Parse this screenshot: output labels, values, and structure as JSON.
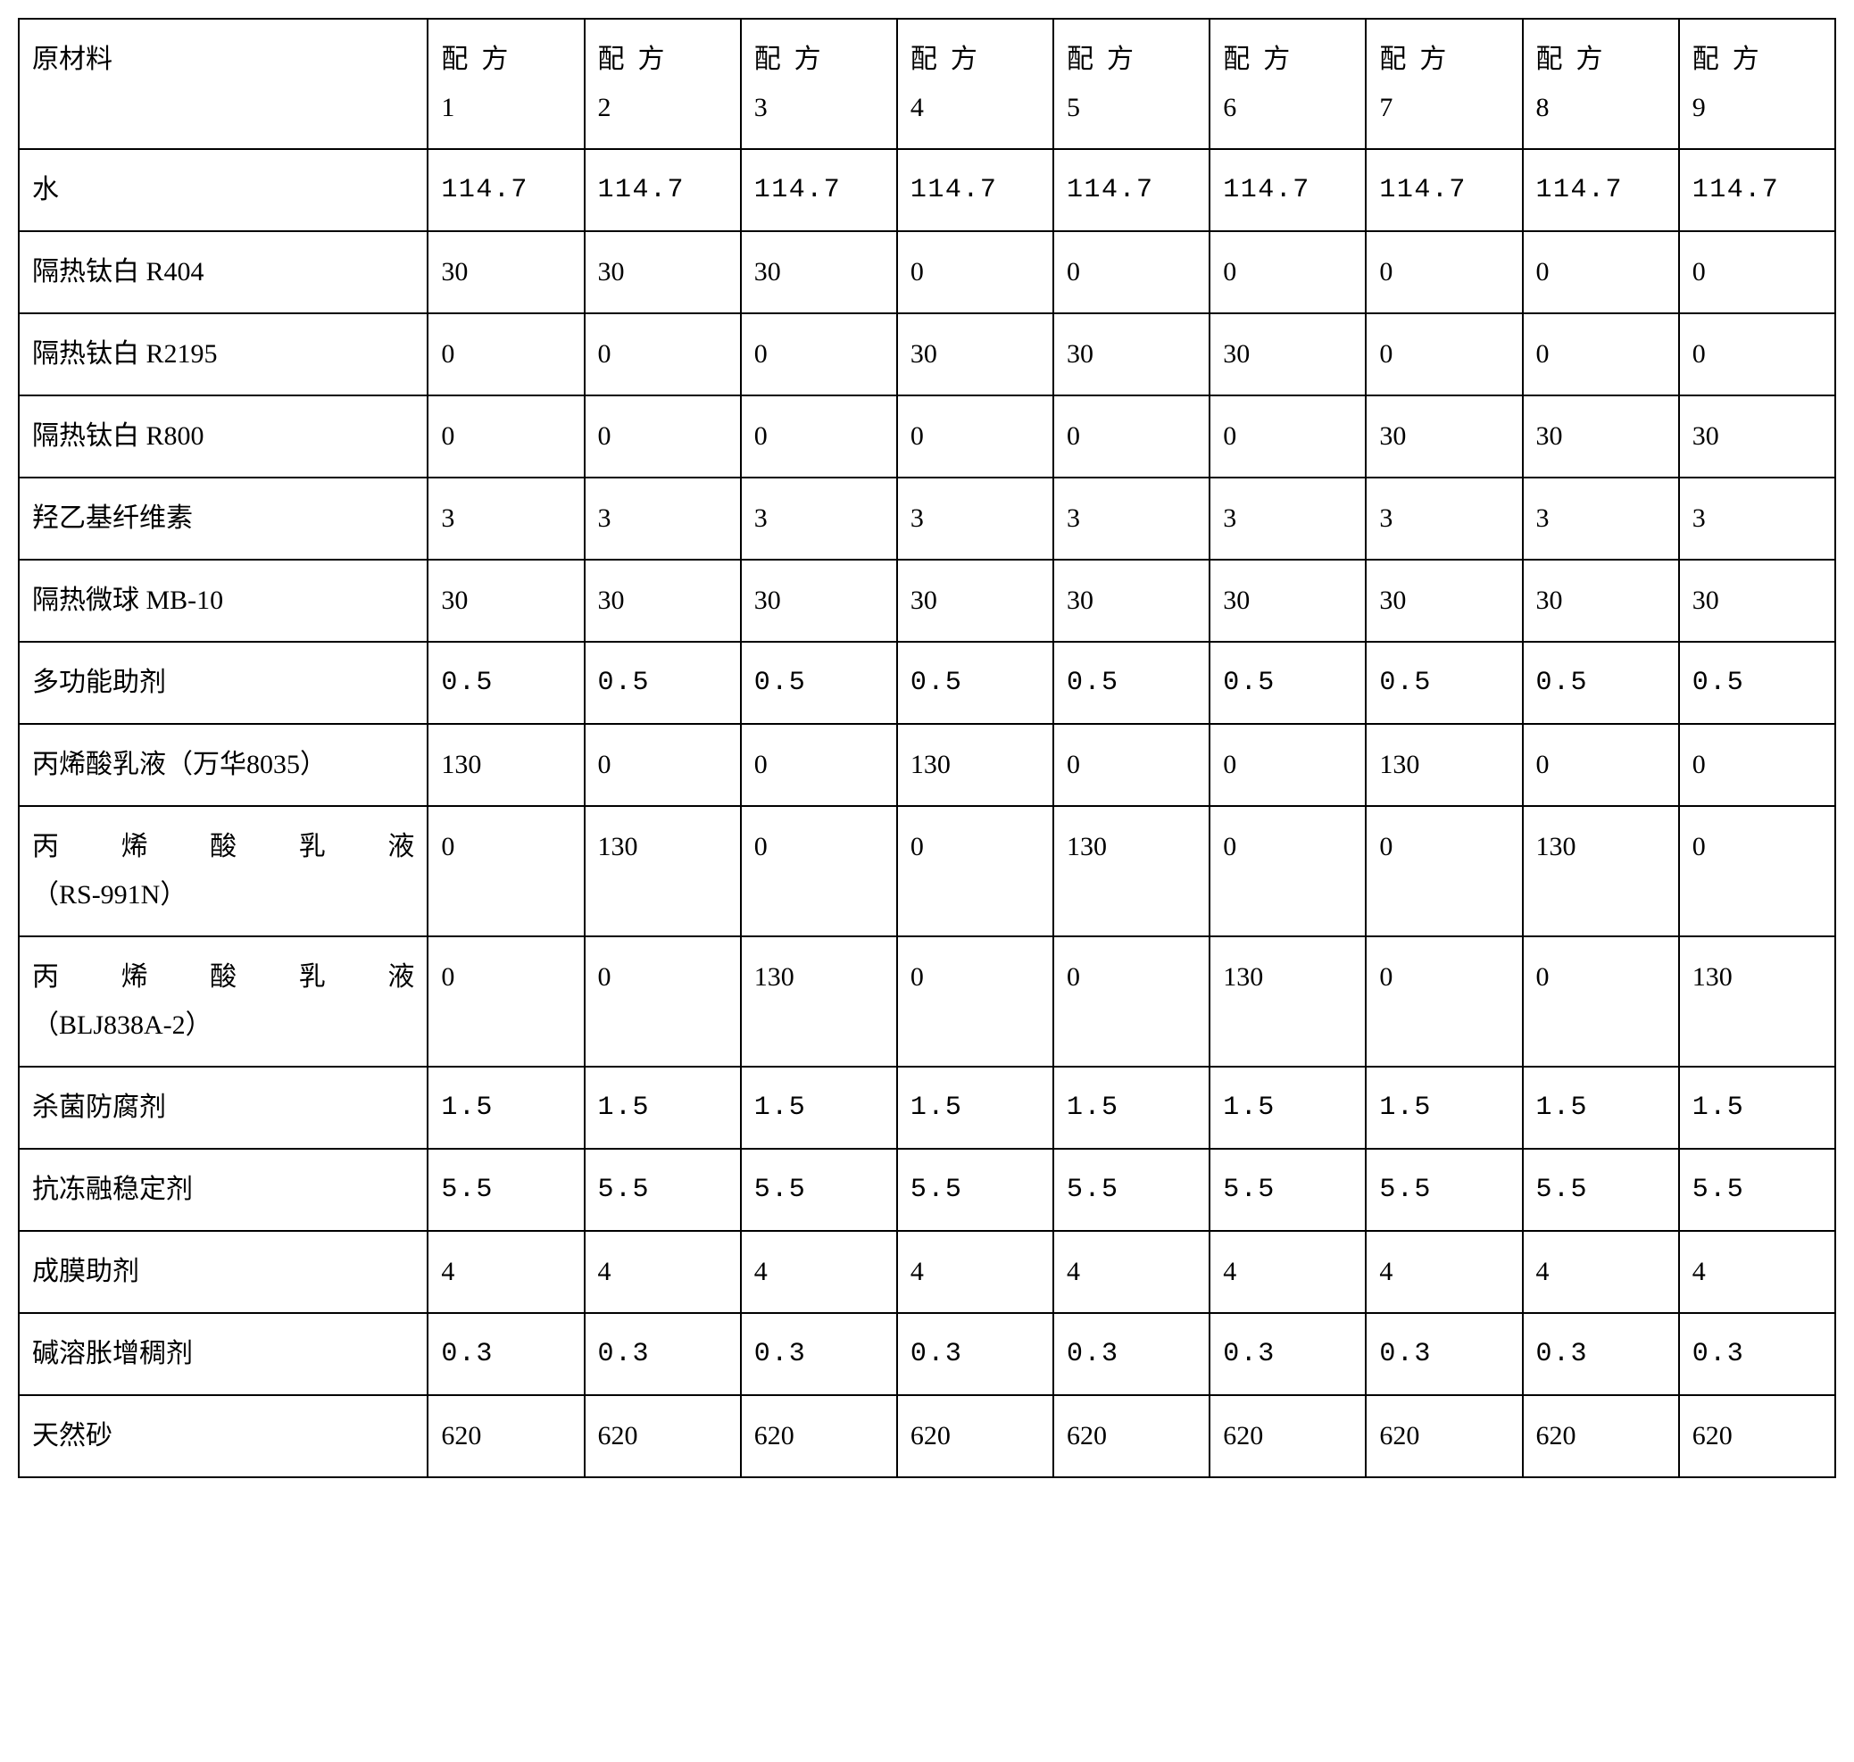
{
  "table": {
    "header": {
      "material_label": "原材料",
      "formula_prefix": "配方",
      "formula_numbers": [
        "1",
        "2",
        "3",
        "4",
        "5",
        "6",
        "7",
        "8",
        "9"
      ]
    },
    "rows": [
      {
        "material": "水",
        "material_class": "",
        "values": [
          "114.7",
          "114.7",
          "114.7",
          "114.7",
          "114.7",
          "114.7",
          "114.7",
          "114.7",
          "114.7"
        ],
        "value_class": "monospace"
      },
      {
        "material": "隔热钛白 R404",
        "material_class": "",
        "values": [
          "30",
          "30",
          "30",
          "0",
          "0",
          "0",
          "0",
          "0",
          "0"
        ],
        "value_class": ""
      },
      {
        "material": "隔热钛白 R2195",
        "material_class": "",
        "values": [
          "0",
          "0",
          "0",
          "30",
          "30",
          "30",
          "0",
          "0",
          "0"
        ],
        "value_class": ""
      },
      {
        "material": "隔热钛白 R800",
        "material_class": "",
        "values": [
          "0",
          "0",
          "0",
          "0",
          "0",
          "0",
          "30",
          "30",
          "30"
        ],
        "value_class": ""
      },
      {
        "material": "羟乙基纤维素",
        "material_class": "",
        "values": [
          "3",
          "3",
          "3",
          "3",
          "3",
          "3",
          "3",
          "3",
          "3"
        ],
        "value_class": ""
      },
      {
        "material": "隔热微球 MB-10",
        "material_class": "",
        "values": [
          "30",
          "30",
          "30",
          "30",
          "30",
          "30",
          "30",
          "30",
          "30"
        ],
        "value_class": ""
      },
      {
        "material": "多功能助剂",
        "material_class": "",
        "values": [
          "0.5",
          "0.5",
          "0.5",
          "0.5",
          "0.5",
          "0.5",
          "0.5",
          "0.5",
          "0.5"
        ],
        "value_class": "monospace"
      },
      {
        "material": "丙烯酸乳液（万华8035）",
        "material_class": "",
        "values": [
          "130",
          "0",
          "0",
          "130",
          "0",
          "0",
          "130",
          "0",
          "0"
        ],
        "value_class": ""
      },
      {
        "material_line1": "丙烯酸乳液",
        "material_line2": "（RS-991N）",
        "material_class": "justify-multiline",
        "values": [
          "0",
          "130",
          "0",
          "0",
          "130",
          "0",
          "0",
          "130",
          "0"
        ],
        "value_class": ""
      },
      {
        "material_line1": "丙烯酸乳液",
        "material_line2": "（BLJ838A-2）",
        "material_class": "justify-multiline",
        "values": [
          "0",
          "0",
          "130",
          "0",
          "0",
          "130",
          "0",
          "0",
          "130"
        ],
        "value_class": ""
      },
      {
        "material": "杀菌防腐剂",
        "material_class": "",
        "values": [
          "1.5",
          "1.5",
          "1.5",
          "1.5",
          "1.5",
          "1.5",
          "1.5",
          "1.5",
          "1.5"
        ],
        "value_class": "monospace"
      },
      {
        "material": "抗冻融稳定剂",
        "material_class": "",
        "values": [
          "5.5",
          "5.5",
          "5.5",
          "5.5",
          "5.5",
          "5.5",
          "5.5",
          "5.5",
          "5.5"
        ],
        "value_class": "monospace"
      },
      {
        "material": "成膜助剂",
        "material_class": "",
        "values": [
          "4",
          "4",
          "4",
          "4",
          "4",
          "4",
          "4",
          "4",
          "4"
        ],
        "value_class": ""
      },
      {
        "material": "碱溶胀增稠剂",
        "material_class": "",
        "values": [
          "0.3",
          "0.3",
          "0.3",
          "0.3",
          "0.3",
          "0.3",
          "0.3",
          "0.3",
          "0.3"
        ],
        "value_class": "monospace"
      },
      {
        "material": "天然砂",
        "material_class": "",
        "values": [
          "620",
          "620",
          "620",
          "620",
          "620",
          "620",
          "620",
          "620",
          "620"
        ],
        "value_class": ""
      }
    ]
  },
  "styling": {
    "border_color": "#000000",
    "border_width": "2px",
    "background_color": "#ffffff",
    "text_color": "#000000",
    "font_size": "30px",
    "font_family_cn": "SimSun",
    "font_family_num": "Courier New",
    "cell_padding": "18px 14px",
    "line_height": "1.8"
  }
}
